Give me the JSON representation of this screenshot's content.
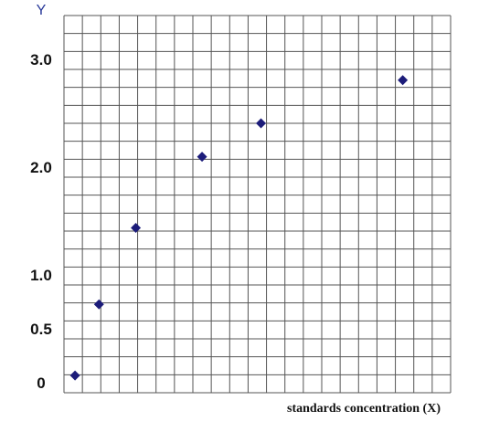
{
  "chart_data": {
    "type": "scatter",
    "x_label": "standards concentration (X)",
    "y_label": "Y",
    "x": [
      0.6,
      1.9,
      3.9,
      7.5,
      10.7,
      18.4
    ],
    "values": [
      0.08,
      0.74,
      1.45,
      2.11,
      2.42,
      2.82
    ],
    "color": "#1c1c7a",
    "xlim": [
      0,
      21
    ],
    "ylim": [
      -0.08,
      3.42
    ],
    "yticks": [
      {
        "value": 0,
        "label": "0"
      },
      0.5,
      {
        "value": 1,
        "label": "1.0"
      },
      {
        "value": 2,
        "label": "2.0"
      },
      {
        "value": 3,
        "label": "3.0"
      }
    ],
    "grid": true
  }
}
